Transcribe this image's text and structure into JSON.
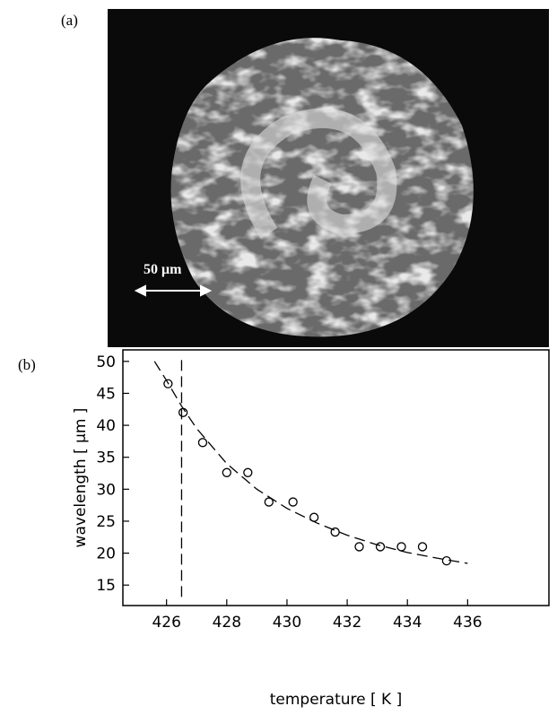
{
  "panel_a": {
    "label": "(a)",
    "scale_bar": "50 μm"
  },
  "chart_data": {
    "type": "scatter",
    "panel_label": "(b)",
    "x_label": "temperature  [ K ]",
    "y_label": "wavelength  [ μm ]",
    "xlim": [
      424.55,
      438.7
    ],
    "ylim": [
      11.8,
      51.8
    ],
    "xticks": [
      426,
      428,
      430,
      432,
      434,
      436
    ],
    "yticks": [
      15,
      20,
      25,
      30,
      35,
      40,
      45,
      50
    ],
    "x": [
      426.05,
      426.55,
      427.2,
      428.0,
      428.7,
      429.4,
      430.2,
      430.9,
      431.6,
      432.4,
      433.1,
      433.8,
      434.5,
      435.3
    ],
    "values": [
      46.5,
      42.0,
      37.3,
      32.6,
      32.6,
      28.0,
      28.0,
      25.6,
      23.3,
      21.0,
      21.0,
      21.0,
      21.0,
      18.8
    ],
    "color": "#000000",
    "fit": {
      "x": [
        425.6,
        426,
        426.5,
        427,
        428,
        429,
        430,
        431,
        432,
        433,
        434,
        435,
        436
      ],
      "values": [
        50,
        47,
        43,
        39.5,
        34,
        30,
        27,
        24.7,
        22.8,
        21.3,
        20.1,
        19.2,
        18.4
      ]
    },
    "vline": 426.5,
    "vline_span": [
      12.8,
      50.2
    ]
  }
}
